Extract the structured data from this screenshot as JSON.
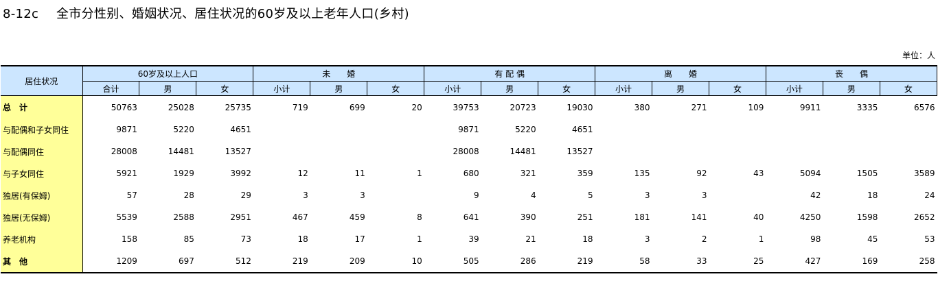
{
  "title": {
    "code": "8-12c",
    "text": "全市分性别、婚姻状况、居住状况的60岁及以上老年人口(乡村)"
  },
  "unit": "单位：人",
  "header": {
    "row_label": "居住状况",
    "groups": [
      "60岁及以上人口",
      "未　　婚",
      "有 配 偶",
      "离　　婚",
      "丧　　偶"
    ],
    "sub_first": [
      "合计",
      "男",
      "女"
    ],
    "sub_other": [
      "小计",
      "男",
      "女"
    ]
  },
  "rows": [
    {
      "label": "总　计",
      "values": [
        "50763",
        "25028",
        "25735",
        "719",
        "699",
        "20",
        "39753",
        "20723",
        "19030",
        "380",
        "271",
        "109",
        "9911",
        "3335",
        "6576"
      ]
    },
    {
      "label": "与配偶和子女同住",
      "values": [
        "9871",
        "5220",
        "4651",
        "",
        "",
        "",
        "9871",
        "5220",
        "4651",
        "",
        "",
        "",
        "",
        "",
        ""
      ]
    },
    {
      "label": "与配偶同住",
      "values": [
        "28008",
        "14481",
        "13527",
        "",
        "",
        "",
        "28008",
        "14481",
        "13527",
        "",
        "",
        "",
        "",
        "",
        ""
      ]
    },
    {
      "label": "与子女同住",
      "values": [
        "5921",
        "1929",
        "3992",
        "12",
        "11",
        "1",
        "680",
        "321",
        "359",
        "135",
        "92",
        "43",
        "5094",
        "1505",
        "3589"
      ]
    },
    {
      "label": "独居(有保姆)",
      "values": [
        "57",
        "28",
        "29",
        "3",
        "3",
        "",
        "9",
        "4",
        "5",
        "3",
        "3",
        "",
        "42",
        "18",
        "24"
      ]
    },
    {
      "label": "独居(无保姆)",
      "values": [
        "5539",
        "2588",
        "2951",
        "467",
        "459",
        "8",
        "641",
        "390",
        "251",
        "181",
        "141",
        "40",
        "4250",
        "1598",
        "2652"
      ]
    },
    {
      "label": "养老机构",
      "values": [
        "158",
        "85",
        "73",
        "18",
        "17",
        "1",
        "39",
        "21",
        "18",
        "3",
        "2",
        "1",
        "98",
        "45",
        "53"
      ]
    },
    {
      "label": "其　他",
      "values": [
        "1209",
        "697",
        "512",
        "219",
        "209",
        "10",
        "505",
        "286",
        "219",
        "58",
        "33",
        "25",
        "427",
        "169",
        "258"
      ]
    }
  ]
}
